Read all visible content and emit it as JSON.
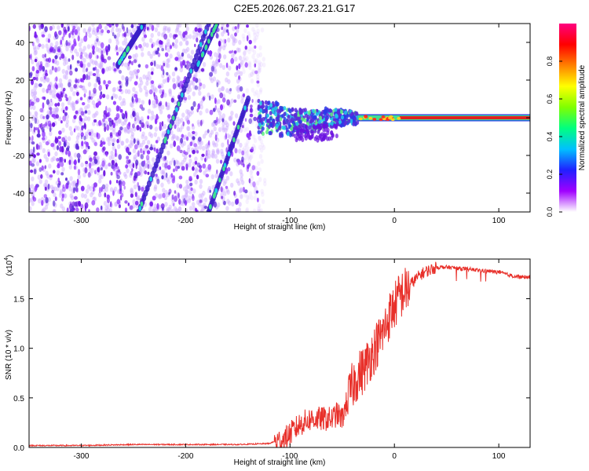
{
  "title": "C2E5.2026.067.23.21.G17",
  "chart_data": [
    {
      "type": "heatmap",
      "xlabel": "Height of straight line (km)",
      "ylabel": "Frequency (Hz)",
      "xlim": [
        -350,
        130
      ],
      "ylim": [
        -50,
        50
      ],
      "xticks": [
        -300,
        -200,
        -100,
        0,
        100
      ],
      "yticks": [
        -40,
        -20,
        0,
        20,
        40
      ],
      "colorbar": {
        "label": "Normalized spectral amplitude",
        "range": [
          0.0,
          1.0
        ],
        "ticks": [
          0.0,
          0.2,
          0.4,
          0.6,
          0.8
        ],
        "tick_labels": [
          "0.0",
          "0.2",
          "0.4",
          "0.6",
          "0.8"
        ],
        "colors": [
          "#ffffff",
          "#a000ff",
          "#2020ff",
          "#00c0ff",
          "#00ff80",
          "#80ff00",
          "#ffff00",
          "#ff8000",
          "#ff0000",
          "#ff0080"
        ]
      },
      "features": [
        {
          "name": "noise",
          "x_range": [
            -350,
            -130
          ],
          "freq_range": [
            -50,
            50
          ]
        },
        {
          "name": "tone",
          "x_range": [
            -130,
            130
          ],
          "freq_hz": 0
        },
        {
          "name": "streak",
          "points": [
            [
              -245,
              -50
            ],
            [
              -178,
              50
            ]
          ]
        },
        {
          "name": "streak",
          "points": [
            [
              -265,
              28
            ],
            [
              -240,
              50
            ]
          ]
        },
        {
          "name": "streak",
          "points": [
            [
              -190,
              26
            ],
            [
              -170,
              50
            ]
          ]
        },
        {
          "name": "streak",
          "points": [
            [
              -178,
              -50
            ],
            [
              -140,
              10
            ]
          ]
        }
      ]
    },
    {
      "type": "line",
      "xlabel": "Height of straight line (km)",
      "ylabel": "SNR (10 * v/v)",
      "yscale_label": "(x10",
      "yscale_exp": "4",
      "xlim": [
        -350,
        130
      ],
      "ylim": [
        0,
        1.9
      ],
      "xticks": [
        -300,
        -200,
        -100,
        0,
        100
      ],
      "yticks": [
        0.0,
        0.5,
        1.0,
        1.5
      ],
      "ytick_labels": [
        "0.0",
        "0.5",
        "1.0",
        "1.5"
      ],
      "series": [
        {
          "name": "SNR",
          "color": "#e8302a",
          "x": [
            -350,
            -300,
            -250,
            -200,
            -150,
            -120,
            -105,
            -95,
            -90,
            -80,
            -70,
            -60,
            -55,
            -50,
            -45,
            -40,
            -35,
            -30,
            -25,
            -20,
            -15,
            -10,
            -5,
            0,
            5,
            10,
            15,
            20,
            25,
            30,
            35,
            40,
            50,
            60,
            70,
            80,
            90,
            100,
            110,
            120,
            130
          ],
          "values": [
            0.02,
            0.02,
            0.03,
            0.03,
            0.03,
            0.04,
            0.1,
            0.2,
            0.25,
            0.3,
            0.3,
            0.3,
            0.35,
            0.3,
            0.5,
            0.65,
            0.75,
            0.8,
            0.9,
            1.0,
            1.1,
            1.2,
            1.35,
            1.45,
            1.55,
            1.6,
            1.65,
            1.7,
            1.75,
            1.78,
            1.8,
            1.82,
            1.82,
            1.81,
            1.8,
            1.79,
            1.78,
            1.77,
            1.74,
            1.72,
            1.72
          ]
        }
      ]
    }
  ]
}
